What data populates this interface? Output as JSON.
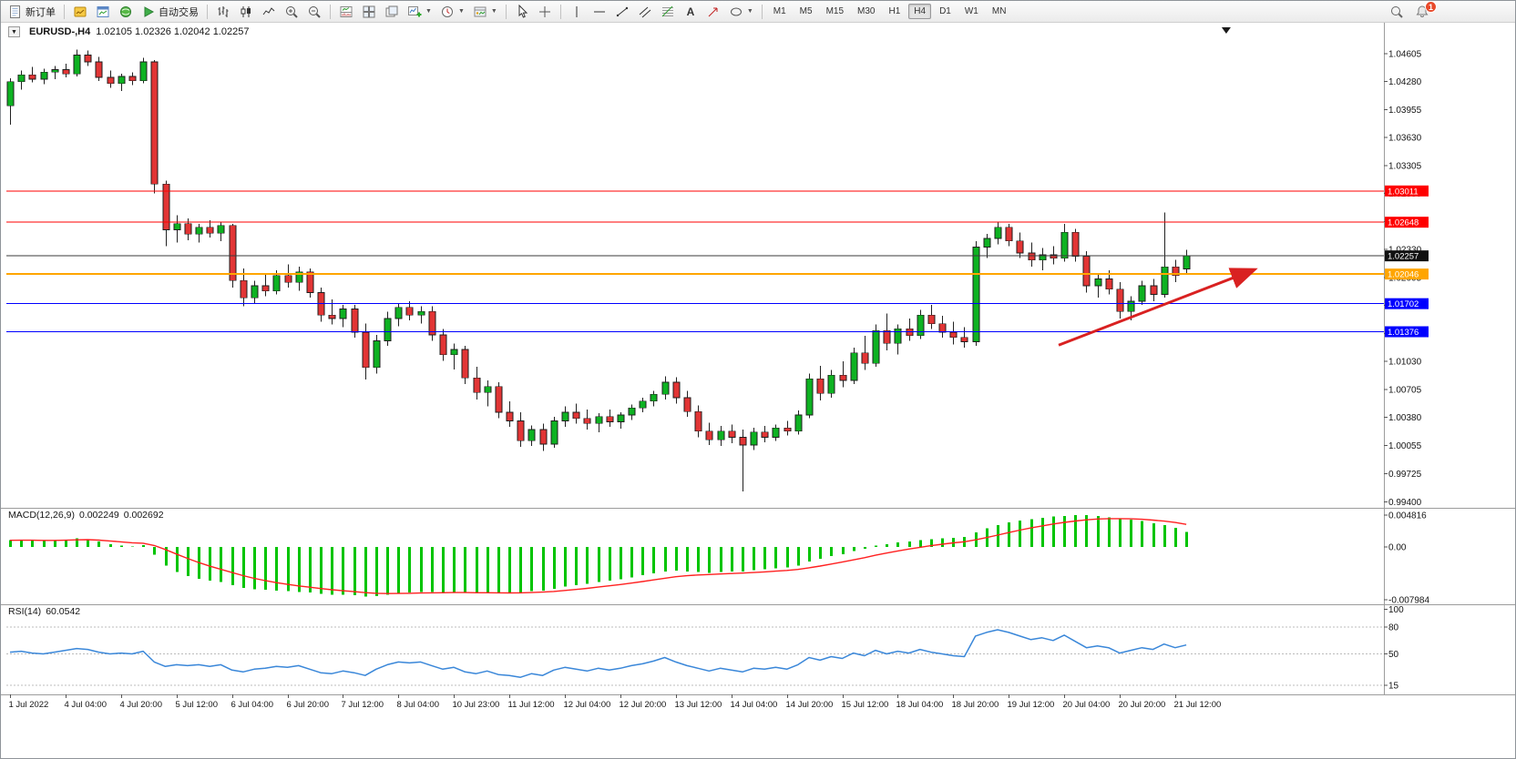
{
  "toolbar": {
    "new_order_label": "新订单",
    "autotrading_label": "自动交易",
    "timeframes": [
      "M1",
      "M5",
      "M15",
      "M30",
      "H1",
      "H4",
      "D1",
      "W1",
      "MN"
    ],
    "active_timeframe": "H4",
    "notification_count": "1",
    "icons": [
      "new-order",
      "market-watch",
      "chart-window",
      "terminal",
      "autotrading-play",
      "bar-chart",
      "candlestick-chart",
      "line-chart",
      "zoom-in",
      "zoom-out",
      "indicators-window",
      "auto-arrange",
      "tile-windows",
      "add-indicator",
      "periods-clock",
      "templates",
      "cursor",
      "crosshair",
      "vertical-line",
      "horizontal-line",
      "trendline",
      "equidistant-channel",
      "fibonacci",
      "text-tool",
      "arrow-tool",
      "search",
      "notifications"
    ]
  },
  "chart": {
    "symbol_period": "EURUSD-,H4",
    "ohlc": "1.02105 1.02326 1.02042 1.02257"
  },
  "chart_data": {
    "type": "candlestick",
    "title": "EURUSD-,H4",
    "style": {
      "bull_color": "#0EB222",
      "bear_color": "#E23535",
      "wick_color": "#222222"
    },
    "y_axis": {
      "min": 0.99405,
      "max": 1.04605,
      "ticks": [
        "1.04605",
        "1.04280",
        "1.03955",
        "1.03630",
        "1.03305",
        "1.02980",
        "1.02655",
        "1.02330",
        "1.02005",
        "1.01680",
        "1.01355",
        "1.01030",
        "1.00705",
        "1.00380",
        "1.00055",
        "0.99725",
        "0.99400"
      ]
    },
    "hlines": [
      {
        "name": "resistance-line-1",
        "price": 1.03011,
        "color": "#FF0000",
        "width": 1,
        "label": "1.03011",
        "label_bg": "#FF0000"
      },
      {
        "name": "resistance-line-2",
        "price": 1.02648,
        "color": "#FF0000",
        "width": 1,
        "label": "1.02648",
        "label_bg": "#FF0000"
      },
      {
        "name": "pivot-line-orange",
        "price": 1.02046,
        "color": "#FFA500",
        "width": 2,
        "label": "1.02046",
        "label_bg": "#FFA500"
      },
      {
        "name": "support-line-1",
        "price": 1.01702,
        "color": "#0000FF",
        "width": 1,
        "label": "1.01702",
        "label_bg": "#0000FF"
      },
      {
        "name": "support-line-2",
        "price": 1.01376,
        "color": "#0000FF",
        "width": 1,
        "label": "1.01376",
        "label_bg": "#0000FF"
      },
      {
        "name": "bid-price-line",
        "price": 1.02257,
        "color": "#3a3a3a",
        "width": 1,
        "label": "1.02257",
        "label_bg": "#111111"
      }
    ],
    "shift_marker": {
      "i": 109.6
    },
    "trend_arrow": {
      "from": {
        "i": 94.5,
        "price": 1.0122
      },
      "to": {
        "i": 112,
        "price": 1.0209
      },
      "color": "#D92121"
    },
    "x_labels": [
      {
        "index": 0,
        "text": "1 Jul 2022"
      },
      {
        "index": 5,
        "text": "4 Jul 04:00"
      },
      {
        "index": 10,
        "text": "4 Jul 20:00"
      },
      {
        "index": 15,
        "text": "5 Jul 12:00"
      },
      {
        "index": 20,
        "text": "6 Jul 04:00"
      },
      {
        "index": 25,
        "text": "6 Jul 20:00"
      },
      {
        "index": 30,
        "text": "7 Jul 12:00"
      },
      {
        "index": 35,
        "text": "8 Jul 04:00"
      },
      {
        "index": 40,
        "text": "10 Jul 23:00"
      },
      {
        "index": 45,
        "text": "11 Jul 12:00"
      },
      {
        "index": 50,
        "text": "12 Jul 04:00"
      },
      {
        "index": 55,
        "text": "12 Jul 20:00"
      },
      {
        "index": 60,
        "text": "13 Jul 12:00"
      },
      {
        "index": 65,
        "text": "14 Jul 04:00"
      },
      {
        "index": 70,
        "text": "14 Jul 20:00"
      },
      {
        "index": 75,
        "text": "15 Jul 12:00"
      },
      {
        "index": 80,
        "text": "18 Jul 04:00"
      },
      {
        "index": 85,
        "text": "18 Jul 20:00"
      },
      {
        "index": 90,
        "text": "19 Jul 12:00"
      },
      {
        "index": 95,
        "text": "20 Jul 04:00"
      },
      {
        "index": 100,
        "text": "20 Jul 20:00"
      },
      {
        "index": 105,
        "text": "21 Jul 12:00"
      }
    ],
    "candles": [
      [
        1.04,
        1.0432,
        1.0378,
        1.0428
      ],
      [
        1.0428,
        1.0441,
        1.0419,
        1.0436
      ],
      [
        1.0436,
        1.0445,
        1.0427,
        1.0431
      ],
      [
        1.0431,
        1.0443,
        1.0425,
        1.0439
      ],
      [
        1.0439,
        1.0446,
        1.0431,
        1.0442
      ],
      [
        1.0442,
        1.0449,
        1.0433,
        1.0437
      ],
      [
        1.0437,
        1.0465,
        1.0434,
        1.0459
      ],
      [
        1.0459,
        1.0464,
        1.0446,
        1.0451
      ],
      [
        1.0451,
        1.0457,
        1.0429,
        1.0433
      ],
      [
        1.0433,
        1.0441,
        1.0421,
        1.0426
      ],
      [
        1.0426,
        1.0437,
        1.0417,
        1.0434
      ],
      [
        1.0434,
        1.0439,
        1.0424,
        1.0429
      ],
      [
        1.0429,
        1.0456,
        1.0426,
        1.0451
      ],
      [
        1.0451,
        1.0453,
        1.0298,
        1.0309
      ],
      [
        1.0309,
        1.0313,
        1.0237,
        1.0256
      ],
      [
        1.0256,
        1.0273,
        1.0241,
        1.0263
      ],
      [
        1.0263,
        1.0269,
        1.0244,
        1.0251
      ],
      [
        1.0251,
        1.0263,
        1.0241,
        1.0259
      ],
      [
        1.0259,
        1.0267,
        1.0247,
        1.0252
      ],
      [
        1.0252,
        1.0265,
        1.0243,
        1.0261
      ],
      [
        1.0261,
        1.0263,
        1.0189,
        1.0197
      ],
      [
        1.0197,
        1.0211,
        1.0167,
        1.0177
      ],
      [
        1.0177,
        1.0197,
        1.0171,
        1.0191
      ],
      [
        1.0191,
        1.0205,
        1.0179,
        1.0185
      ],
      [
        1.0185,
        1.0209,
        1.0181,
        1.0203
      ],
      [
        1.0203,
        1.0216,
        1.0189,
        1.0195
      ],
      [
        1.0195,
        1.0213,
        1.0185,
        1.0207
      ],
      [
        1.0207,
        1.0211,
        1.0177,
        1.0183
      ],
      [
        1.0183,
        1.0189,
        1.0149,
        1.0157
      ],
      [
        1.0157,
        1.0175,
        1.0146,
        1.0153
      ],
      [
        1.0153,
        1.0169,
        1.0143,
        1.0164
      ],
      [
        1.0164,
        1.0169,
        1.0131,
        1.0137
      ],
      [
        1.0137,
        1.0147,
        1.0082,
        1.0096
      ],
      [
        1.0096,
        1.0134,
        1.0089,
        1.0127
      ],
      [
        1.0127,
        1.0161,
        1.0121,
        1.0153
      ],
      [
        1.0153,
        1.0171,
        1.0144,
        1.0166
      ],
      [
        1.0166,
        1.0173,
        1.0151,
        1.0157
      ],
      [
        1.0157,
        1.0167,
        1.0147,
        1.0161
      ],
      [
        1.0161,
        1.0167,
        1.0127,
        1.0134
      ],
      [
        1.0134,
        1.0141,
        1.0104,
        1.0111
      ],
      [
        1.0111,
        1.0124,
        1.0094,
        1.0117
      ],
      [
        1.0117,
        1.0121,
        1.0077,
        1.0084
      ],
      [
        1.0084,
        1.0097,
        1.0059,
        1.0067
      ],
      [
        1.0067,
        1.0081,
        1.0051,
        1.0074
      ],
      [
        1.0074,
        1.0079,
        1.0037,
        1.0044
      ],
      [
        1.0044,
        1.0057,
        1.0027,
        1.0034
      ],
      [
        1.0034,
        1.0044,
        1.0004,
        1.0011
      ],
      [
        1.0011,
        1.0029,
        1.0005,
        1.0024
      ],
      [
        1.0024,
        1.0031,
        0.9999,
        1.0007
      ],
      [
        1.0007,
        1.0039,
        1.0003,
        1.0034
      ],
      [
        1.0034,
        1.0051,
        1.0027,
        1.0044
      ],
      [
        1.0044,
        1.0054,
        1.0031,
        1.0037
      ],
      [
        1.0037,
        1.0047,
        1.0024,
        1.0031
      ],
      [
        1.0031,
        1.0043,
        1.0021,
        1.0039
      ],
      [
        1.0039,
        1.0047,
        1.0027,
        1.0033
      ],
      [
        1.0033,
        1.0044,
        1.0025,
        1.0041
      ],
      [
        1.0041,
        1.0053,
        1.0035,
        1.0049
      ],
      [
        1.0049,
        1.0061,
        1.0044,
        1.0057
      ],
      [
        1.0057,
        1.0069,
        1.0051,
        1.0065
      ],
      [
        1.0065,
        1.0086,
        1.0059,
        1.0079
      ],
      [
        1.0079,
        1.0085,
        1.0054,
        1.0061
      ],
      [
        1.0061,
        1.0069,
        1.0039,
        1.0045
      ],
      [
        1.0045,
        1.0052,
        1.0015,
        1.0022
      ],
      [
        1.0022,
        1.0032,
        1.0006,
        1.0012
      ],
      [
        1.0012,
        1.0028,
        1.0005,
        1.0022
      ],
      [
        1.0022,
        1.003,
        1.0008,
        1.0015
      ],
      [
        1.0015,
        1.0024,
        0.9952,
        1.0006
      ],
      [
        1.0006,
        1.0026,
        1.0,
        1.0021
      ],
      [
        1.0021,
        1.0028,
        1.0009,
        1.0015
      ],
      [
        1.0015,
        1.003,
        1.0011,
        1.0026
      ],
      [
        1.0026,
        1.0034,
        1.0017,
        1.0022
      ],
      [
        1.0022,
        1.0046,
        1.0018,
        1.0041
      ],
      [
        1.0041,
        1.0089,
        1.0037,
        1.0083
      ],
      [
        1.0083,
        1.0098,
        1.0058,
        1.0066
      ],
      [
        1.0066,
        1.0093,
        1.0061,
        1.0087
      ],
      [
        1.0087,
        1.0103,
        1.0073,
        1.0081
      ],
      [
        1.0081,
        1.0119,
        1.0077,
        1.0113
      ],
      [
        1.0113,
        1.0133,
        1.0093,
        1.0101
      ],
      [
        1.0101,
        1.0146,
        1.0097,
        1.0139
      ],
      [
        1.0139,
        1.0159,
        1.0116,
        1.0124
      ],
      [
        1.0124,
        1.0146,
        1.0111,
        1.0141
      ],
      [
        1.0141,
        1.0153,
        1.0127,
        1.0133
      ],
      [
        1.0133,
        1.0163,
        1.0129,
        1.0157
      ],
      [
        1.0157,
        1.0169,
        1.0141,
        1.0147
      ],
      [
        1.0147,
        1.0156,
        1.0131,
        1.0137
      ],
      [
        1.0137,
        1.0149,
        1.0123,
        1.0131
      ],
      [
        1.0131,
        1.0143,
        1.0119,
        1.0126
      ],
      [
        1.0126,
        1.0243,
        1.0121,
        1.0236
      ],
      [
        1.0236,
        1.0251,
        1.0223,
        1.0246
      ],
      [
        1.0246,
        1.0265,
        1.0239,
        1.0259
      ],
      [
        1.0259,
        1.0263,
        1.0237,
        1.0243
      ],
      [
        1.0243,
        1.0253,
        1.0223,
        1.0229
      ],
      [
        1.0229,
        1.0241,
        1.0213,
        1.0221
      ],
      [
        1.0221,
        1.0235,
        1.0209,
        1.0227
      ],
      [
        1.0227,
        1.0237,
        1.0216,
        1.0223
      ],
      [
        1.0223,
        1.0263,
        1.0219,
        1.0253
      ],
      [
        1.0253,
        1.0257,
        1.0219,
        1.0225
      ],
      [
        1.0225,
        1.0231,
        1.0183,
        1.0191
      ],
      [
        1.0191,
        1.0205,
        1.0177,
        1.0199
      ],
      [
        1.0199,
        1.0209,
        1.0181,
        1.0187
      ],
      [
        1.0187,
        1.0195,
        1.0153,
        1.0161
      ],
      [
        1.0161,
        1.0179,
        1.0151,
        1.0173
      ],
      [
        1.0173,
        1.0197,
        1.0169,
        1.0191
      ],
      [
        1.0191,
        1.0199,
        1.0173,
        1.0181
      ],
      [
        1.0181,
        1.0276,
        1.0177,
        1.0213
      ],
      [
        1.0213,
        1.0221,
        1.0195,
        1.0203
      ],
      [
        1.02105,
        1.02326,
        1.02042,
        1.02257
      ]
    ],
    "macd": {
      "name": "MACD(12,26,9)",
      "value_main": "0.002249",
      "value_signal": "0.002692",
      "histogram_color": "#00C400",
      "signal_color": "#FF2020",
      "axis": [
        "0.004816",
        "0.00",
        "-0.007984"
      ],
      "histogram": [
        0.001,
        0.0011,
        0.001,
        0.0009,
        0.001,
        0.0011,
        0.0013,
        0.0012,
        0.0008,
        0.0004,
        0.0002,
        0.0001,
        0.0003,
        -0.0012,
        -0.0028,
        -0.0038,
        -0.0044,
        -0.0048,
        -0.0051,
        -0.0053,
        -0.0058,
        -0.0062,
        -0.0064,
        -0.0065,
        -0.0066,
        -0.0067,
        -0.0068,
        -0.0069,
        -0.0071,
        -0.0072,
        -0.0072,
        -0.0073,
        -0.0075,
        -0.0074,
        -0.0072,
        -0.007,
        -0.0069,
        -0.0068,
        -0.0068,
        -0.0069,
        -0.0068,
        -0.0069,
        -0.007,
        -0.0069,
        -0.007,
        -0.007,
        -0.0069,
        -0.0067,
        -0.0066,
        -0.0063,
        -0.006,
        -0.0058,
        -0.0056,
        -0.0053,
        -0.0051,
        -0.0049,
        -0.0046,
        -0.0043,
        -0.004,
        -0.0037,
        -0.0036,
        -0.0037,
        -0.0038,
        -0.0039,
        -0.0038,
        -0.0037,
        -0.0037,
        -0.0035,
        -0.0034,
        -0.0032,
        -0.0031,
        -0.0028,
        -0.0022,
        -0.0018,
        -0.0014,
        -0.0011,
        -0.0006,
        -0.0003,
        0.0002,
        0.0004,
        0.0007,
        0.0008,
        0.001,
        0.0012,
        0.0013,
        0.0014,
        0.0015,
        0.0022,
        0.0028,
        0.0033,
        0.0037,
        0.004,
        0.0042,
        0.0044,
        0.0046,
        0.0047,
        0.0048,
        0.0048,
        0.0047,
        0.0045,
        0.0043,
        0.0041,
        0.0039,
        0.0036,
        0.0033,
        0.0029,
        0.00225
      ]
    },
    "rsi": {
      "name": "RSI(14)",
      "value": "60.0542",
      "line_color": "#3A87D9",
      "levels": [
        100,
        80,
        50,
        15
      ],
      "values": [
        52,
        53,
        51,
        50,
        52,
        54,
        56,
        55,
        52,
        50,
        51,
        50,
        53,
        41,
        36,
        38,
        37,
        38,
        36,
        38,
        32,
        30,
        33,
        34,
        36,
        35,
        37,
        33,
        29,
        28,
        31,
        29,
        26,
        33,
        38,
        41,
        40,
        41,
        37,
        33,
        35,
        30,
        28,
        31,
        27,
        26,
        24,
        28,
        26,
        32,
        35,
        33,
        31,
        34,
        32,
        34,
        37,
        39,
        42,
        46,
        41,
        37,
        34,
        31,
        34,
        32,
        30,
        34,
        33,
        35,
        33,
        38,
        46,
        43,
        47,
        45,
        51,
        48,
        54,
        50,
        53,
        51,
        55,
        52,
        50,
        48,
        47,
        70,
        74,
        77,
        74,
        70,
        66,
        68,
        65,
        71,
        64,
        57,
        59,
        57,
        51,
        54,
        57,
        55,
        61,
        57,
        60.05
      ]
    }
  }
}
